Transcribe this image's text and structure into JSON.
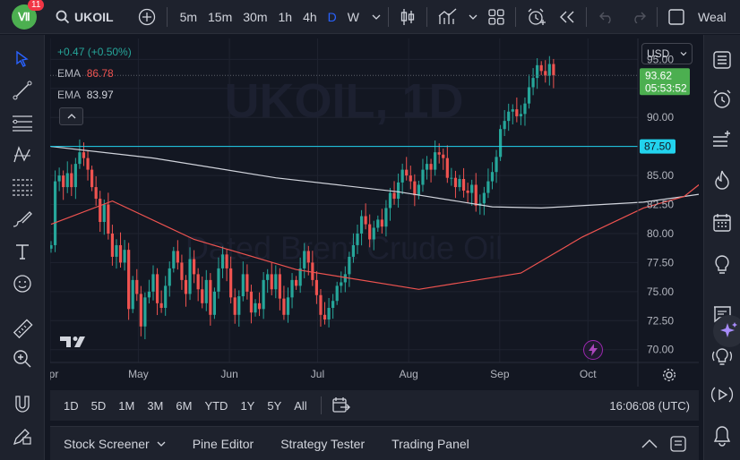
{
  "app": {
    "badge_count": "11",
    "brand_glyph": "Ⅶ"
  },
  "header": {
    "symbol": "UKOIL",
    "intervals": [
      "5m",
      "15m",
      "30m",
      "1h",
      "4h",
      "D",
      "W"
    ],
    "active_interval": "D",
    "right_text": "Weal"
  },
  "legend": {
    "change": "+0.47 (+0.50%)",
    "ema1_label": "EMA",
    "ema1_value": "86.78",
    "ema2_label": "EMA",
    "ema2_value": "83.97"
  },
  "currency": "USD",
  "watermark": {
    "symbol": "UKOIL",
    "interval": "1D",
    "description": "Dated Brent Crude Oil"
  },
  "price_labels": {
    "last_price": "93.62",
    "countdown": "05:53:52",
    "hline_price": "87.50"
  },
  "colors": {
    "up": "#26a69a",
    "down": "#ef5350",
    "ema_fast": "#ef5350",
    "ema_slow": "#d1d4dc",
    "hline": "#22d3ee",
    "price_green": "#4caf50",
    "bg": "#131722"
  },
  "chart_data": {
    "type": "candlestick",
    "y_ticks": [
      "95.00",
      "92.50",
      "90.00",
      "87.50",
      "85.00",
      "82.50",
      "80.00",
      "77.50",
      "75.00",
      "72.50",
      "70.00"
    ],
    "x_ticks": [
      "Apr",
      "May",
      "Jun",
      "Jul",
      "Aug",
      "Sep",
      "Oct"
    ],
    "ylim": [
      68.9,
      96.8
    ],
    "horizontal_line": 87.5,
    "ohlc_anchor_closes": [
      79,
      84.5,
      85,
      84,
      85.2,
      84,
      86,
      87,
      86.5,
      85.5,
      84,
      83,
      81,
      82.5,
      80,
      78,
      79,
      77.5,
      78.6,
      73.5,
      76,
      74.8,
      72,
      74.5,
      75,
      76.5,
      74,
      73.6,
      75.5,
      77,
      78.5,
      77.5,
      76,
      74.8,
      77.8,
      76.5,
      75.2,
      74,
      76,
      73,
      75,
      77,
      78.2,
      77,
      74.5,
      73,
      74.6,
      76.5,
      75,
      73.2,
      74,
      73.5,
      76,
      76.5,
      75.2,
      76.5,
      74.4,
      73,
      74.5,
      76,
      75.5,
      77,
      78.5,
      77.5,
      76,
      74.7,
      73,
      72.6,
      73.6,
      74.2,
      75.5,
      75.8,
      76.5,
      78,
      79,
      80,
      81.5,
      80.8,
      79.5,
      80.5,
      81.2,
      80.6,
      82.2,
      83.5,
      83,
      84.4,
      85.5,
      85,
      84.5,
      83.3,
      84.2,
      85.5,
      86,
      85.5,
      87,
      86.8,
      86.5,
      84.8,
      84.8,
      84,
      84.7,
      83.7,
      83.5,
      84.2,
      82.4,
      82.6,
      83.5,
      84.5,
      85.3,
      86.6,
      89,
      89.7,
      90.5,
      90.7,
      90.1,
      90.3,
      91.2,
      92.6,
      93.4,
      94.5,
      94,
      93.6,
      94.6,
      93.62
    ],
    "ema_fast_points": [
      [
        0,
        80.8
      ],
      [
        15,
        82.8
      ],
      [
        35,
        79.5
      ],
      [
        60,
        76.9
      ],
      [
        90,
        75.2
      ],
      [
        115,
        76.6
      ],
      [
        130,
        79.7
      ],
      [
        145,
        82.2
      ],
      [
        155,
        83.2
      ],
      [
        165,
        86.0
      ],
      [
        170,
        86.78
      ]
    ],
    "ema_slow_points": [
      [
        0,
        87.5
      ],
      [
        25,
        86.5
      ],
      [
        55,
        84.8
      ],
      [
        85,
        83.6
      ],
      [
        108,
        82.3
      ],
      [
        120,
        82.2
      ],
      [
        145,
        82.7
      ],
      [
        155,
        83.2
      ],
      [
        170,
        83.97
      ]
    ],
    "x_domain_days": [
      0,
      200
    ],
    "month_tick_days": [
      0,
      30,
      61,
      91,
      122,
      153,
      183
    ]
  },
  "range_bar": {
    "ranges": [
      "1D",
      "5D",
      "1M",
      "3M",
      "6M",
      "YTD",
      "1Y",
      "5Y",
      "All"
    ],
    "clock": "16:06:08 (UTC)"
  },
  "panels": [
    "Stock Screener",
    "Pine Editor",
    "Strategy Tester",
    "Trading Panel"
  ]
}
